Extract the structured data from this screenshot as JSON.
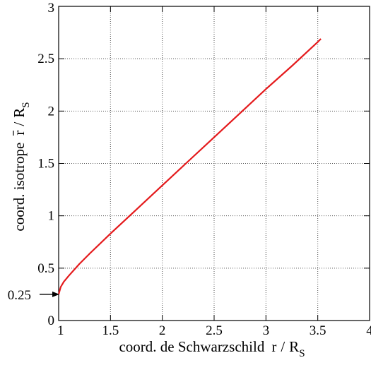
{
  "chart_data": {
    "type": "line",
    "title": "",
    "xlabel": "coord. de Schwarzschild",
    "xlabel_var": "r",
    "xlabel_div": "/",
    "xlabel_R": "R",
    "xlabel_sub": "S",
    "ylabel": "coord. isotrope",
    "ylabel_var": "r",
    "ylabel_div": "/",
    "ylabel_R": "R",
    "ylabel_sub": "S",
    "xlim": [
      1,
      4
    ],
    "ylim": [
      0,
      3
    ],
    "x_ticks": [
      1,
      1.5,
      2,
      2.5,
      3,
      3.5,
      4
    ],
    "x_tick_labels": [
      "1",
      "1.5",
      "2",
      "2.5",
      "3",
      "3.5",
      "4"
    ],
    "y_ticks": [
      0,
      0.5,
      1,
      1.5,
      2,
      2.5,
      3
    ],
    "y_tick_labels": [
      "0",
      "0.5",
      "1",
      "1.5",
      "2",
      "2.5",
      "3"
    ],
    "grid": true,
    "series": [
      {
        "color": "#e41a1c",
        "x": [
          1,
          1.02,
          1.05,
          1.1,
          1.2,
          1.3,
          1.5,
          1.75,
          2,
          2.25,
          2.5,
          2.75,
          3,
          3.25,
          3.5,
          3.53
        ],
        "y": [
          0.25,
          0.32,
          0.37,
          0.43,
          0.54,
          0.64,
          0.83,
          1.06,
          1.29,
          1.52,
          1.75,
          1.98,
          2.21,
          2.43,
          2.66,
          2.69
        ]
      }
    ],
    "annotations": [
      {
        "label": "0.25",
        "y": 0.25,
        "arrow": true
      }
    ],
    "line_color": "#e41a1c"
  }
}
